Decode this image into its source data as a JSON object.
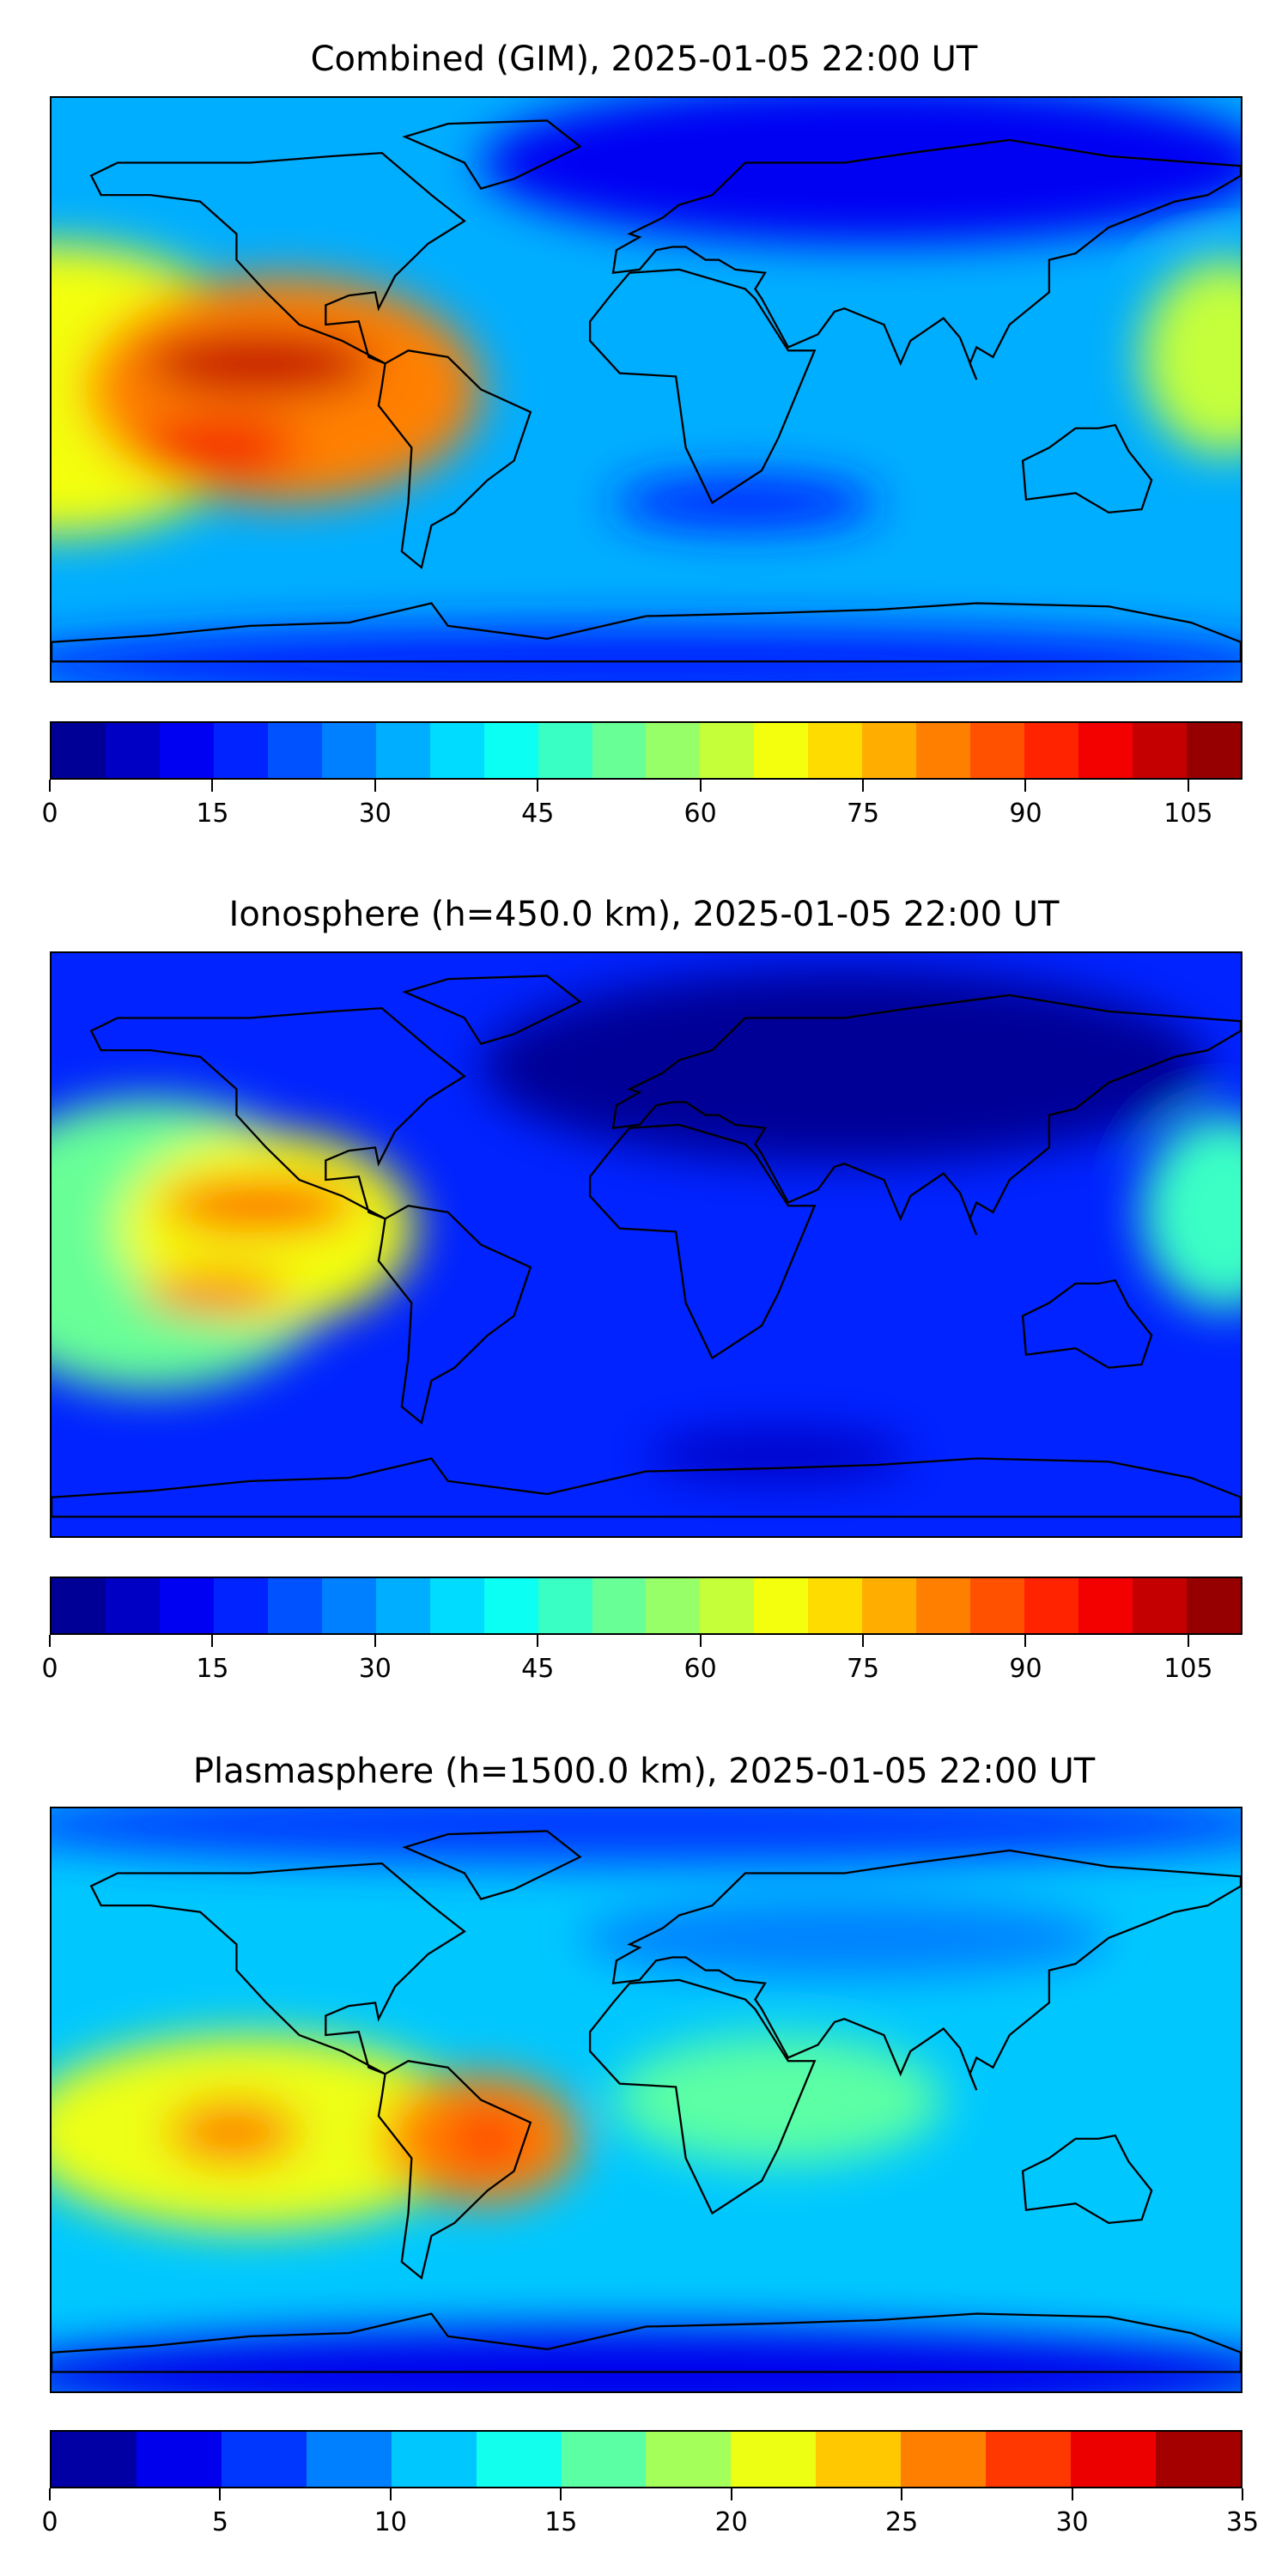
{
  "chart_data": [
    {
      "type": "heatmap",
      "title": "Combined (GIM), 2025-01-05 22:00 UT",
      "colormap": "jet",
      "levels_min": 0,
      "levels_max": 110,
      "level_step": 5,
      "colorbar_ticks": [
        "0",
        "15",
        "30",
        "45",
        "60",
        "75",
        "90",
        "105"
      ],
      "tick_values": [
        0,
        15,
        30,
        45,
        60,
        75,
        90,
        105
      ],
      "background_level": 32,
      "features": [
        {
          "lon": -180,
          "lat": 0,
          "rx": 70,
          "ry": 45,
          "value": 68
        },
        {
          "lon": -110,
          "lat": 0,
          "rx": 60,
          "ry": 35,
          "value": 80
        },
        {
          "lon": -117,
          "lat": 8,
          "rx": 35,
          "ry": 10,
          "value": 100
        },
        {
          "lon": -130,
          "lat": -18,
          "rx": 25,
          "ry": 8,
          "value": 95
        },
        {
          "lon": 175,
          "lat": 10,
          "rx": 25,
          "ry": 30,
          "value": 60
        },
        {
          "lon": 70,
          "lat": 70,
          "rx": 120,
          "ry": 25,
          "value": 12
        },
        {
          "lon": 30,
          "lat": -35,
          "rx": 40,
          "ry": 8,
          "value": 18
        },
        {
          "lon": 0,
          "lat": -85,
          "rx": 200,
          "ry": 12,
          "value": 15
        }
      ]
    },
    {
      "type": "heatmap",
      "title": "Ionosphere  (h=450.0 km), 2025-01-05 22:00 UT",
      "colormap": "jet",
      "levels_min": 0,
      "levels_max": 110,
      "level_step": 5,
      "colorbar_ticks": [
        "0",
        "15",
        "30",
        "45",
        "60",
        "75",
        "90",
        "105"
      ],
      "tick_values": [
        0,
        15,
        30,
        45,
        60,
        75,
        90,
        105
      ],
      "background_level": 16,
      "features": [
        {
          "lon": -150,
          "lat": 0,
          "rx": 60,
          "ry": 45,
          "value": 50
        },
        {
          "lon": -115,
          "lat": 5,
          "rx": 45,
          "ry": 30,
          "value": 65
        },
        {
          "lon": -117,
          "lat": 12,
          "rx": 30,
          "ry": 8,
          "value": 85
        },
        {
          "lon": -130,
          "lat": -15,
          "rx": 22,
          "ry": 7,
          "value": 80
        },
        {
          "lon": 175,
          "lat": 10,
          "rx": 25,
          "ry": 30,
          "value": 45
        },
        {
          "lon": 60,
          "lat": 55,
          "rx": 110,
          "ry": 30,
          "value": 4
        },
        {
          "lon": 40,
          "lat": -65,
          "rx": 40,
          "ry": 8,
          "value": 5
        }
      ]
    },
    {
      "type": "heatmap",
      "title": "Plasmasphere (h=1500.0 km), 2025-01-05 22:00 UT",
      "colormap": "jet",
      "levels_min": 0,
      "levels_max": 35,
      "level_step": 2.5,
      "colorbar_ticks": [
        "0",
        "5",
        "10",
        "15",
        "20",
        "25",
        "30",
        "35"
      ],
      "tick_values": [
        0,
        5,
        10,
        15,
        20,
        25,
        30,
        35
      ],
      "background_level": 12,
      "features": [
        {
          "lon": -120,
          "lat": -10,
          "rx": 70,
          "ry": 30,
          "value": 20
        },
        {
          "lon": -125,
          "lat": -10,
          "rx": 20,
          "ry": 10,
          "value": 26
        },
        {
          "lon": -50,
          "lat": -12,
          "rx": 30,
          "ry": 20,
          "value": 26
        },
        {
          "lon": -48,
          "lat": -12,
          "rx": 12,
          "ry": 8,
          "value": 29
        },
        {
          "lon": 40,
          "lat": 0,
          "rx": 50,
          "ry": 20,
          "value": 15
        },
        {
          "lon": 0,
          "lat": 85,
          "rx": 200,
          "ry": 12,
          "value": 5
        },
        {
          "lon": 0,
          "lat": -85,
          "rx": 200,
          "ry": 15,
          "value": 4
        },
        {
          "lon": 60,
          "lat": 50,
          "rx": 80,
          "ry": 12,
          "value": 8
        }
      ]
    }
  ]
}
